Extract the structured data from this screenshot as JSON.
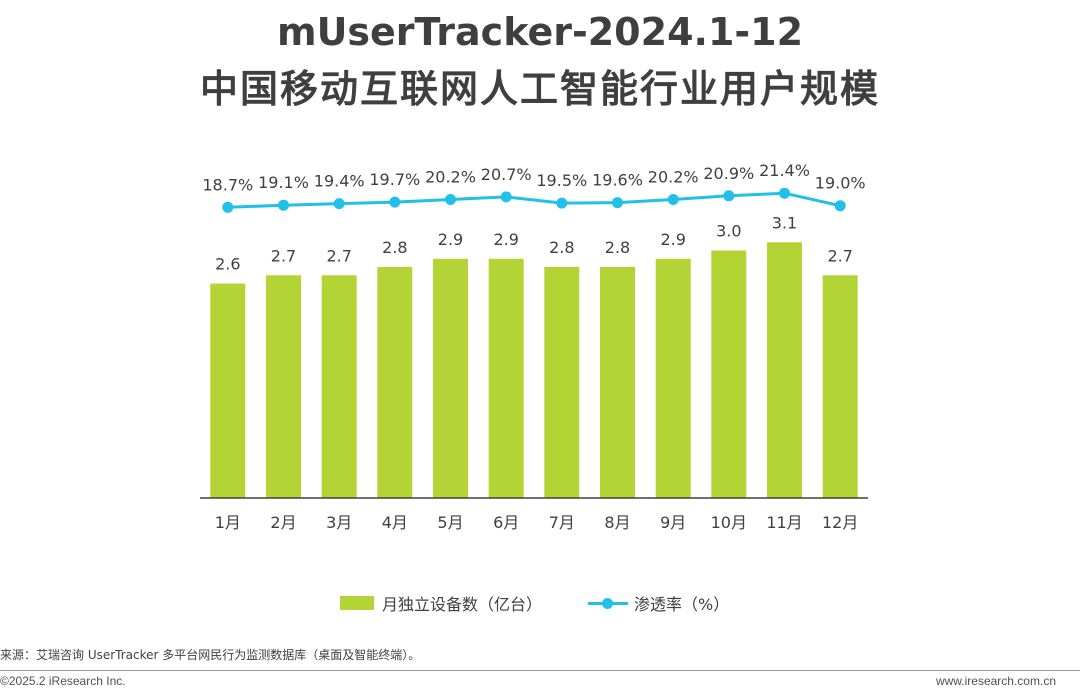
{
  "title": {
    "line1": "mUserTracker-2024.1-12",
    "line2": "中国移动互联网人工智能行业用户规模"
  },
  "colors": {
    "bar": "#b4d334",
    "line": "#20c0ea",
    "text": "#404040",
    "axis": "#404040"
  },
  "chart_data": {
    "type": "bar",
    "categories": [
      "1月",
      "2月",
      "3月",
      "4月",
      "5月",
      "6月",
      "7月",
      "8月",
      "9月",
      "10月",
      "11月",
      "12月"
    ],
    "series": [
      {
        "name": "月独立设备数（亿台）",
        "type": "bar",
        "values": [
          2.6,
          2.7,
          2.7,
          2.8,
          2.9,
          2.9,
          2.8,
          2.8,
          2.9,
          3.0,
          3.1,
          2.7
        ],
        "labels": [
          "2.6",
          "2.7",
          "2.7",
          "2.8",
          "2.9",
          "2.9",
          "2.8",
          "2.8",
          "2.9",
          "3.0",
          "3.1",
          "2.7"
        ]
      },
      {
        "name": "渗透率（%）",
        "type": "line",
        "values": [
          18.7,
          19.1,
          19.4,
          19.7,
          20.2,
          20.7,
          19.5,
          19.6,
          20.2,
          20.9,
          21.4,
          19.0
        ],
        "labels": [
          "18.7%",
          "19.1%",
          "19.4%",
          "19.7%",
          "20.2%",
          "20.7%",
          "19.5%",
          "19.6%",
          "20.2%",
          "20.9%",
          "21.4%",
          "19.0%"
        ]
      }
    ],
    "legend_position": "bottom-center",
    "grid": false
  },
  "legend": {
    "bar_label": "月独立设备数（亿台）",
    "line_label": "渗透率（%）"
  },
  "footer": {
    "source": "来源：艾瑞咨询 UserTracker 多平台网民行为监测数据库（桌面及智能终端）。",
    "copyright": "©2025.2 iResearch Inc.",
    "website": "www.iresearch.com.cn"
  }
}
